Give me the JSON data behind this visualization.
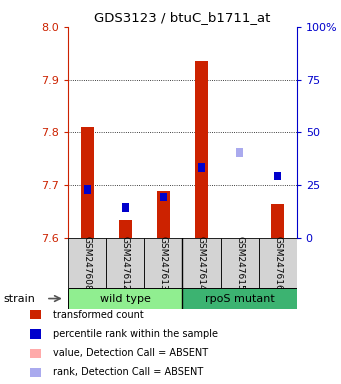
{
  "title": "GDS3123 / btuC_b1711_at",
  "samples": [
    "GSM247608",
    "GSM247612",
    "GSM247613",
    "GSM247614",
    "GSM247615",
    "GSM247616"
  ],
  "groups": [
    {
      "name": "wild type",
      "color": "#90ee90",
      "samples": [
        0,
        1,
        2
      ]
    },
    {
      "name": "rpoS mutant",
      "color": "#3cb371",
      "samples": [
        3,
        4,
        5
      ]
    }
  ],
  "ylim": [
    7.6,
    8.0
  ],
  "yticks": [
    7.6,
    7.7,
    7.8,
    7.9,
    8.0
  ],
  "y_right_ticks": [
    0,
    25,
    50,
    75,
    100
  ],
  "red_bars": {
    "bottom": [
      7.6,
      7.6,
      7.6,
      7.6,
      7.6,
      7.6
    ],
    "top": [
      7.81,
      7.635,
      7.69,
      7.935,
      7.6,
      7.665
    ],
    "absent": [
      false,
      false,
      false,
      false,
      true,
      false
    ]
  },
  "blue_squares": {
    "values": [
      7.692,
      7.658,
      7.678,
      7.734,
      7.762,
      7.718
    ],
    "absent": [
      false,
      false,
      false,
      false,
      true,
      false
    ]
  },
  "left_axis_color": "#cc2200",
  "right_axis_color": "#0000cc",
  "bar_width": 0.35,
  "legend_items": [
    {
      "color": "#cc2200",
      "label": "transformed count"
    },
    {
      "color": "#0000cc",
      "label": "percentile rank within the sample"
    },
    {
      "color": "#ffaaaa",
      "label": "value, Detection Call = ABSENT"
    },
    {
      "color": "#aaaaee",
      "label": "rank, Detection Call = ABSENT"
    }
  ],
  "strain_label": "strain",
  "background_color": "#ffffff"
}
